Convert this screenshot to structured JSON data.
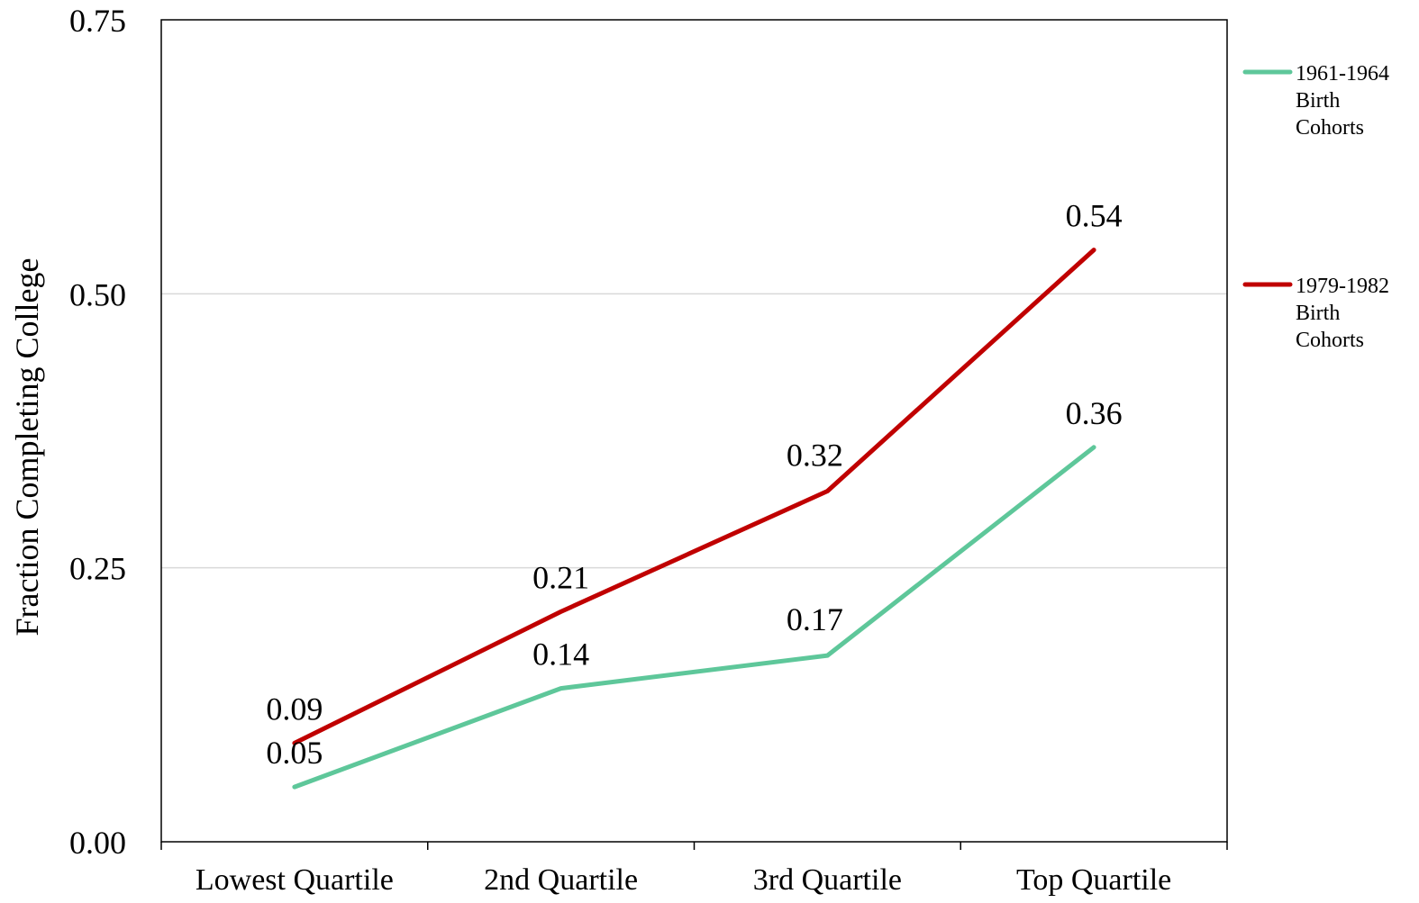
{
  "chart_data": {
    "type": "line",
    "title": "",
    "xlabel": "",
    "ylabel": "Fraction Completing College",
    "categories": [
      "Lowest Quartile",
      "2nd Quartile",
      "3rd Quartile",
      "Top Quartile"
    ],
    "ylim": [
      0,
      0.75
    ],
    "yticks": [
      "0.00",
      "0.25",
      "0.50",
      "0.75"
    ],
    "grid": true,
    "legend_position": "right",
    "series": [
      {
        "name": "1961-1964 Birth Cohorts",
        "legend_lines": [
          "1961-1964",
          "Birth",
          "Cohorts"
        ],
        "color": "#5ec79a",
        "values": [
          0.05,
          0.14,
          0.17,
          0.36
        ],
        "labels": [
          "0.05",
          "0.14",
          "0.17",
          "0.36"
        ]
      },
      {
        "name": "1979-1982 Birth Cohorts",
        "legend_lines": [
          "1979-1982",
          "Birth",
          "Cohorts"
        ],
        "color": "#c00000",
        "values": [
          0.09,
          0.21,
          0.32,
          0.54
        ],
        "labels": [
          "0.09",
          "0.21",
          "0.32",
          "0.54"
        ]
      }
    ]
  }
}
